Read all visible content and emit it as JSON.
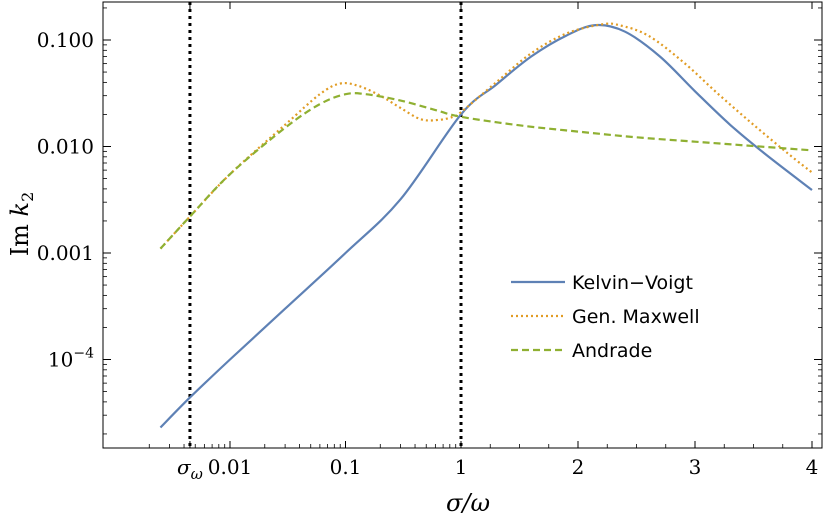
{
  "chart_data": {
    "type": "line",
    "xlabel": "σ/ω",
    "ylabel": "Im k₂",
    "y_scale": "log",
    "ylim": [
      2.5e-05,
      0.2
    ],
    "x_scale": "piecewise: log for σ/ω ≤ 1, linear for σ/ω ≥ 1",
    "xlim": [
      0.0012,
      4
    ],
    "x_ticks": [
      {
        "value": 0.0045,
        "label": "σω"
      },
      {
        "value": 0.01,
        "label": "0.01"
      },
      {
        "value": 0.1,
        "label": "0.1"
      },
      {
        "value": 1,
        "label": "1"
      },
      {
        "value": 2,
        "label": "2"
      },
      {
        "value": 3,
        "label": "3"
      },
      {
        "value": 4,
        "label": "4"
      }
    ],
    "y_ticks": [
      {
        "value": 0.0001,
        "label": "10−4"
      },
      {
        "value": 0.001,
        "label": "0.001"
      },
      {
        "value": 0.01,
        "label": "0.010"
      },
      {
        "value": 0.1,
        "label": "0.100"
      }
    ],
    "vertical_lines": [
      {
        "x": 0.0045,
        "style": "dotted",
        "color": "#000000"
      },
      {
        "x": 1,
        "style": "dotted",
        "color": "#000000"
      }
    ],
    "legend_position": "right",
    "series": [
      {
        "name": "Kelvin−Voigt",
        "color": "#5e81b5",
        "dash": "solid",
        "x": [
          0.0025,
          0.0045,
          0.01,
          0.03,
          0.1,
          0.3,
          1,
          1.3,
          1.6,
          1.9,
          2.15,
          2.4,
          2.7,
          3.0,
          3.3,
          3.6,
          4.0
        ],
        "y": [
          2.3e-05,
          4.4e-05,
          0.0001,
          0.0003,
          0.001,
          0.0032,
          0.02,
          0.038,
          0.07,
          0.11,
          0.138,
          0.12,
          0.07,
          0.033,
          0.016,
          0.0085,
          0.0039
        ]
      },
      {
        "name": "Gen. Maxwell",
        "color": "#e19c24",
        "dash": "dotted",
        "x": [
          0.0025,
          0.0045,
          0.01,
          0.03,
          0.06,
          0.09,
          0.13,
          0.2,
          0.3,
          0.45,
          0.65,
          0.85,
          1,
          1.3,
          1.6,
          1.9,
          2.2,
          2.35,
          2.6,
          2.9,
          3.2,
          3.5,
          3.8,
          4.0
        ],
        "y": [
          0.0011,
          0.0022,
          0.0055,
          0.016,
          0.031,
          0.039,
          0.037,
          0.03,
          0.023,
          0.018,
          0.0178,
          0.019,
          0.021,
          0.04,
          0.075,
          0.115,
          0.14,
          0.138,
          0.11,
          0.062,
          0.031,
          0.016,
          0.0085,
          0.0057
        ]
      },
      {
        "name": "Andrade",
        "color": "#8fb032",
        "dash": "dashed",
        "x": [
          0.0025,
          0.0045,
          0.01,
          0.03,
          0.06,
          0.1,
          0.15,
          0.3,
          0.6,
          1,
          1.5,
          2,
          2.5,
          3,
          3.5,
          4.0
        ],
        "y": [
          0.0011,
          0.0022,
          0.0055,
          0.015,
          0.025,
          0.031,
          0.031,
          0.027,
          0.022,
          0.019,
          0.0158,
          0.0138,
          0.0122,
          0.0111,
          0.0101,
          0.0092
        ]
      }
    ]
  }
}
